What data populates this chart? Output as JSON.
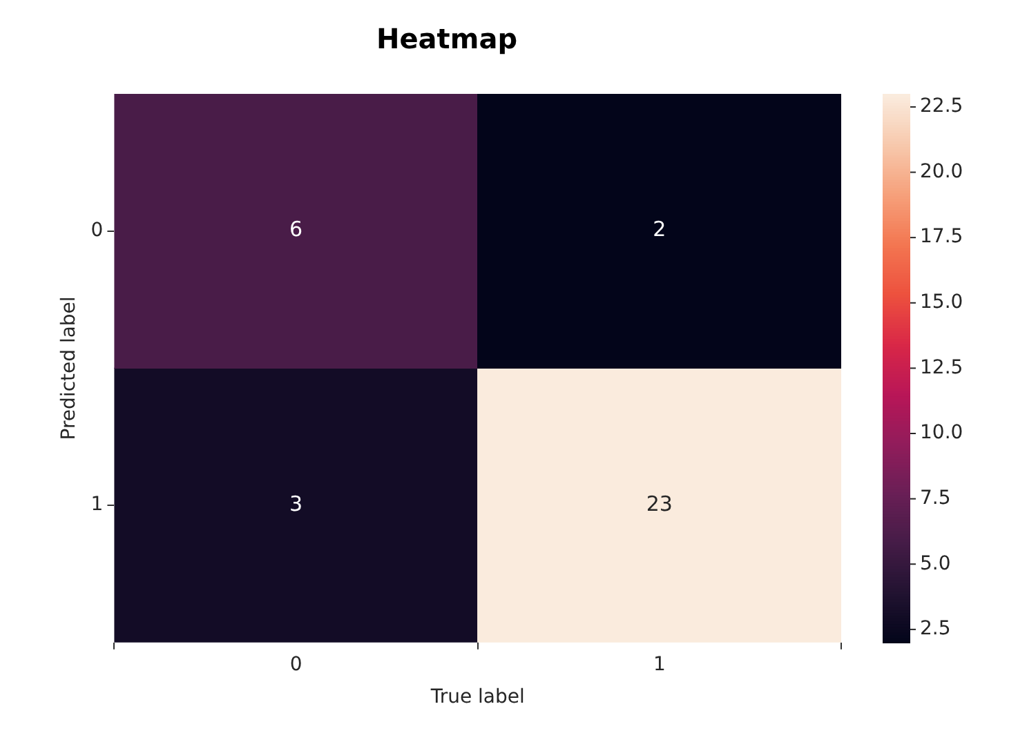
{
  "chart_data": {
    "type": "heatmap",
    "title": "Heatmap",
    "xlabel": "True label",
    "ylabel": "Predicted label",
    "categories": [
      "0",
      "1"
    ],
    "y_categories": [
      "0",
      "1"
    ],
    "cells": [
      [
        6,
        2
      ],
      [
        3,
        23
      ]
    ],
    "data_labels": true,
    "clim": [
      2,
      23
    ],
    "cticks": [
      2.5,
      {
        "value": 5,
        "label": "5.0"
      },
      7.5,
      {
        "value": 10,
        "label": "10.0"
      },
      12.5,
      {
        "value": 15,
        "label": "15.0"
      },
      17.5,
      {
        "value": 20,
        "label": "20.0"
      },
      22.5
    ]
  }
}
